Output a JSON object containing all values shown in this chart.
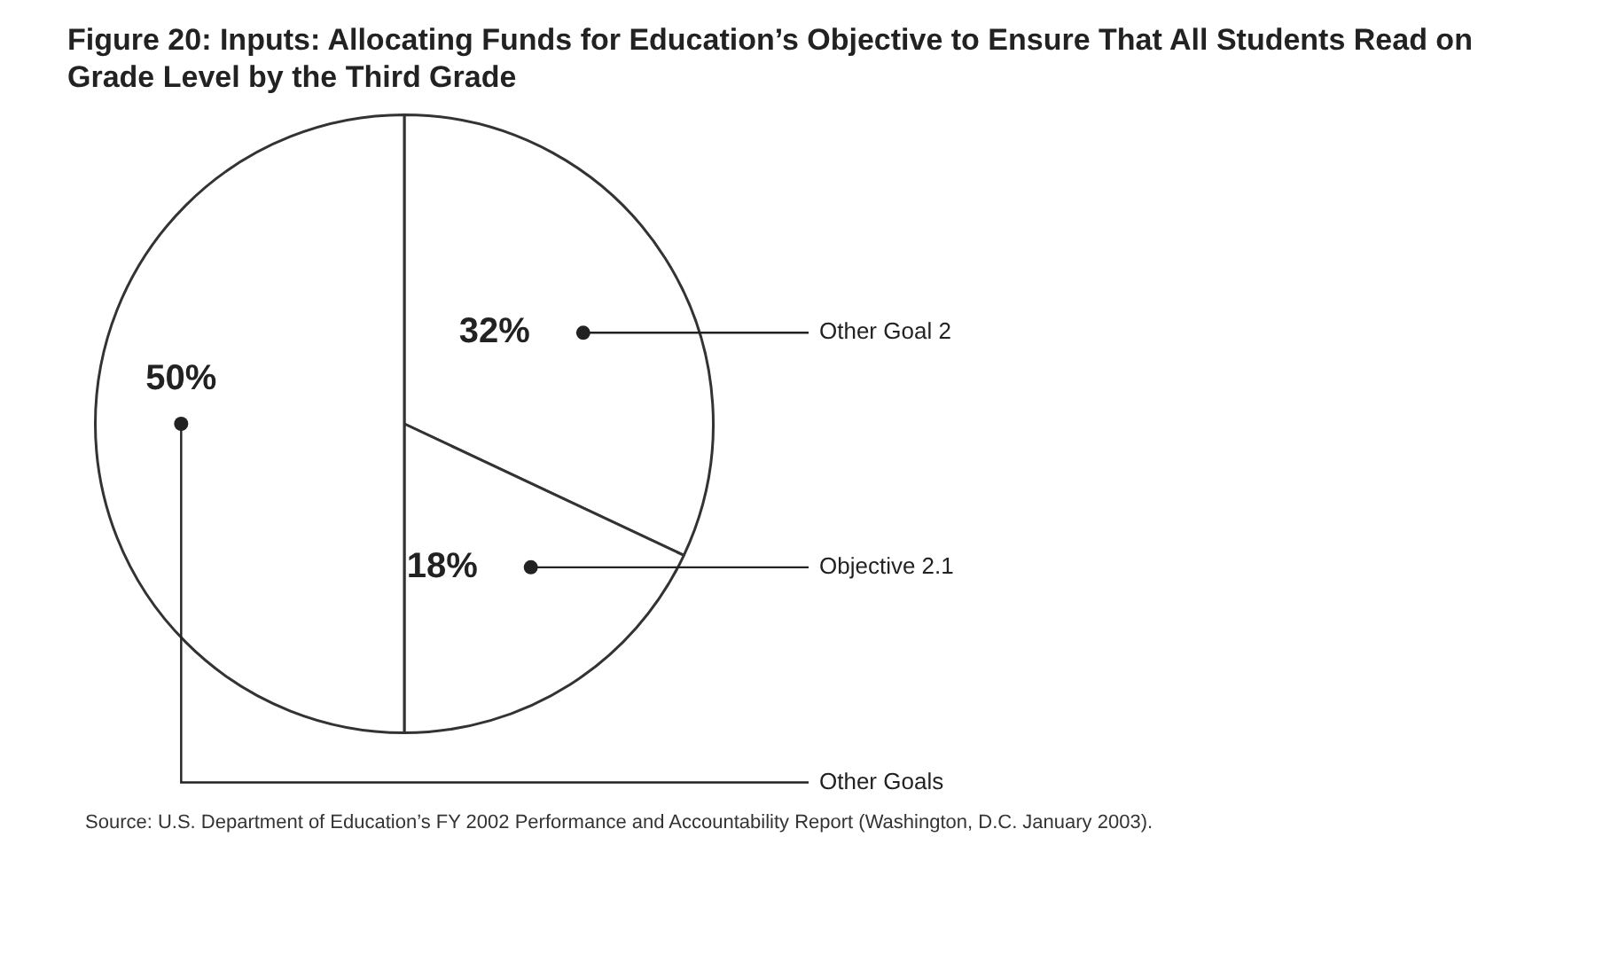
{
  "chart_data": {
    "type": "pie",
    "title": "Figure 20:  Inputs: Allocating Funds for Education’s Objective to Ensure That All Students Read on Grade Level by the Third Grade",
    "categories": [
      "Other Goal 2",
      "Objective 2.1",
      "Other Goals"
    ],
    "values": [
      32,
      18,
      50
    ],
    "colors": [
      "#ffffff",
      "#ffffff",
      "#ffffff"
    ],
    "value_labels": [
      "32%",
      "18%",
      "50%"
    ],
    "annotations": [
      "Source: U.S. Department of Education’s FY 2002 Performance and Accountability Report (Washington, D.C. January 2003)."
    ]
  }
}
